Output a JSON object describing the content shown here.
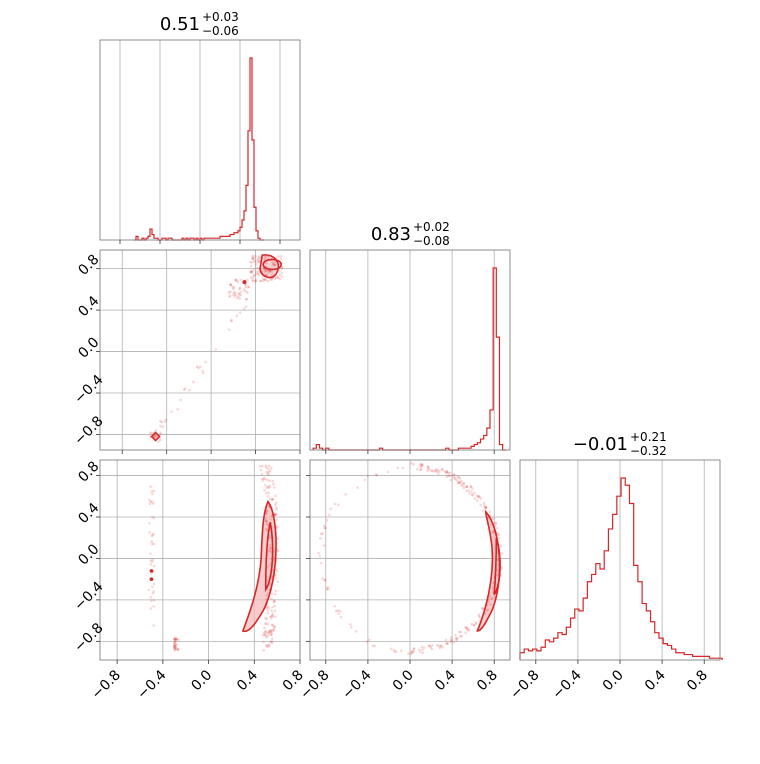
{
  "figure_type": "corner-plot",
  "colors": {
    "main": "#d62728",
    "fill": "#f4b6b8",
    "grid": "#b0b0b0",
    "frame": "#808080"
  },
  "chart_data": [
    {
      "type": "histogram",
      "panel": "hist-param-1",
      "title": {
        "median": "0.51",
        "upper": "+0.03",
        "lower": "−0.06"
      },
      "xlim": [
        -1,
        1
      ],
      "bins": [
        [
          -0.66,
          0.0
        ],
        [
          -0.64,
          0.02
        ],
        [
          -0.62,
          0.0
        ],
        [
          -0.6,
          0.0
        ],
        [
          -0.58,
          0.01
        ],
        [
          -0.56,
          0.0
        ],
        [
          -0.54,
          0.01
        ],
        [
          -0.52,
          0.02
        ],
        [
          -0.5,
          0.06
        ],
        [
          -0.48,
          0.03
        ],
        [
          -0.46,
          0.01
        ],
        [
          -0.44,
          0.01
        ],
        [
          -0.42,
          0.0
        ],
        [
          -0.4,
          0.0
        ],
        [
          -0.38,
          0.01
        ],
        [
          -0.36,
          0.01
        ],
        [
          -0.34,
          0.0
        ],
        [
          -0.32,
          0.01
        ],
        [
          -0.3,
          0.01
        ],
        [
          -0.28,
          0.0
        ],
        [
          -0.26,
          0.0
        ],
        [
          -0.24,
          0.0
        ],
        [
          -0.22,
          0.0
        ],
        [
          -0.2,
          0.0
        ],
        [
          -0.18,
          0.01
        ],
        [
          -0.16,
          0.0
        ],
        [
          -0.14,
          0.01
        ],
        [
          -0.12,
          0.0
        ],
        [
          -0.1,
          0.01
        ],
        [
          -0.08,
          0.01
        ],
        [
          -0.06,
          0.0
        ],
        [
          -0.04,
          0.01
        ],
        [
          -0.02,
          0.0
        ],
        [
          0.0,
          0.01
        ],
        [
          0.02,
          0.0
        ],
        [
          0.04,
          0.01
        ],
        [
          0.06,
          0.01
        ],
        [
          0.08,
          0.01
        ],
        [
          0.1,
          0.01
        ],
        [
          0.12,
          0.01
        ],
        [
          0.14,
          0.01
        ],
        [
          0.16,
          0.01
        ],
        [
          0.18,
          0.01
        ],
        [
          0.2,
          0.02
        ],
        [
          0.22,
          0.02
        ],
        [
          0.24,
          0.02
        ],
        [
          0.26,
          0.02
        ],
        [
          0.28,
          0.02
        ],
        [
          0.3,
          0.03
        ],
        [
          0.32,
          0.03
        ],
        [
          0.34,
          0.04
        ],
        [
          0.36,
          0.04
        ],
        [
          0.38,
          0.05
        ],
        [
          0.4,
          0.07
        ],
        [
          0.42,
          0.11
        ],
        [
          0.44,
          0.16
        ],
        [
          0.46,
          0.3
        ],
        [
          0.48,
          0.6
        ],
        [
          0.5,
          1.0
        ],
        [
          0.52,
          0.55
        ],
        [
          0.54,
          0.18
        ],
        [
          0.56,
          0.05
        ],
        [
          0.58,
          0.01
        ],
        [
          0.6,
          0.0
        ],
        [
          0.62,
          0.0
        ]
      ]
    },
    {
      "type": "histogram",
      "panel": "hist-param-2",
      "title": {
        "median": "0.83",
        "upper": "+0.02",
        "lower": "−0.08"
      },
      "xlim": [
        -0.95,
        0.95
      ],
      "bins": [
        [
          -0.92,
          0.01
        ],
        [
          -0.89,
          0.03
        ],
        [
          -0.86,
          0.01
        ],
        [
          -0.83,
          0.0
        ],
        [
          -0.8,
          0.01
        ],
        [
          -0.77,
          0.0
        ],
        [
          -0.74,
          0.0
        ],
        [
          -0.71,
          0.0
        ],
        [
          -0.68,
          0.0
        ],
        [
          -0.65,
          0.0
        ],
        [
          -0.62,
          0.0
        ],
        [
          -0.59,
          0.0
        ],
        [
          -0.56,
          0.0
        ],
        [
          -0.53,
          0.0
        ],
        [
          -0.5,
          0.0
        ],
        [
          -0.47,
          0.0
        ],
        [
          -0.44,
          0.0
        ],
        [
          -0.41,
          0.0
        ],
        [
          -0.38,
          0.0
        ],
        [
          -0.35,
          0.0
        ],
        [
          -0.32,
          0.0
        ],
        [
          -0.29,
          0.01
        ],
        [
          -0.26,
          0.0
        ],
        [
          -0.23,
          0.0
        ],
        [
          -0.2,
          0.0
        ],
        [
          -0.17,
          0.0
        ],
        [
          -0.14,
          0.0
        ],
        [
          -0.11,
          0.0
        ],
        [
          -0.08,
          0.0
        ],
        [
          -0.05,
          0.0
        ],
        [
          -0.02,
          0.0
        ],
        [
          0.01,
          0.0
        ],
        [
          0.04,
          0.0
        ],
        [
          0.07,
          0.0
        ],
        [
          0.1,
          0.0
        ],
        [
          0.13,
          0.0
        ],
        [
          0.16,
          0.0
        ],
        [
          0.19,
          0.0
        ],
        [
          0.22,
          0.0
        ],
        [
          0.25,
          0.0
        ],
        [
          0.28,
          0.0
        ],
        [
          0.31,
          0.0
        ],
        [
          0.34,
          0.01
        ],
        [
          0.37,
          0.0
        ],
        [
          0.4,
          0.0
        ],
        [
          0.43,
          0.0
        ],
        [
          0.46,
          0.01
        ],
        [
          0.49,
          0.01
        ],
        [
          0.52,
          0.01
        ],
        [
          0.55,
          0.01
        ],
        [
          0.58,
          0.02
        ],
        [
          0.61,
          0.03
        ],
        [
          0.64,
          0.04
        ],
        [
          0.67,
          0.06
        ],
        [
          0.7,
          0.08
        ],
        [
          0.73,
          0.12
        ],
        [
          0.76,
          0.22
        ],
        [
          0.79,
          1.0
        ],
        [
          0.82,
          0.62
        ],
        [
          0.85,
          0.03
        ],
        [
          0.88,
          0.0
        ]
      ]
    },
    {
      "type": "histogram",
      "panel": "hist-param-3",
      "title": {
        "median": "−0.01",
        "upper": "+0.21",
        "lower": "−0.32"
      },
      "xlim": [
        -0.95,
        0.95
      ],
      "bins": [
        [
          -0.95,
          0.04
        ],
        [
          -0.91,
          0.06
        ],
        [
          -0.87,
          0.05
        ],
        [
          -0.83,
          0.06
        ],
        [
          -0.79,
          0.05
        ],
        [
          -0.75,
          0.07
        ],
        [
          -0.71,
          0.11
        ],
        [
          -0.67,
          0.1
        ],
        [
          -0.63,
          0.12
        ],
        [
          -0.59,
          0.15
        ],
        [
          -0.55,
          0.14
        ],
        [
          -0.51,
          0.18
        ],
        [
          -0.47,
          0.23
        ],
        [
          -0.43,
          0.28
        ],
        [
          -0.39,
          0.27
        ],
        [
          -0.35,
          0.34
        ],
        [
          -0.31,
          0.43
        ],
        [
          -0.27,
          0.47
        ],
        [
          -0.23,
          0.53
        ],
        [
          -0.19,
          0.5
        ],
        [
          -0.15,
          0.6
        ],
        [
          -0.11,
          0.72
        ],
        [
          -0.07,
          0.8
        ],
        [
          -0.03,
          0.9
        ],
        [
          0.01,
          1.0
        ],
        [
          0.05,
          0.96
        ],
        [
          0.09,
          0.86
        ],
        [
          0.13,
          0.52
        ],
        [
          0.17,
          0.43
        ],
        [
          0.21,
          0.31
        ],
        [
          0.25,
          0.27
        ],
        [
          0.29,
          0.21
        ],
        [
          0.33,
          0.15
        ],
        [
          0.37,
          0.12
        ],
        [
          0.41,
          0.09
        ],
        [
          0.45,
          0.08
        ],
        [
          0.49,
          0.06
        ],
        [
          0.53,
          0.04
        ],
        [
          0.57,
          0.04
        ],
        [
          0.61,
          0.03
        ],
        [
          0.65,
          0.03
        ],
        [
          0.69,
          0.02
        ],
        [
          0.73,
          0.02
        ],
        [
          0.77,
          0.02
        ],
        [
          0.81,
          0.02
        ],
        [
          0.85,
          0.01
        ],
        [
          0.89,
          0.01
        ],
        [
          0.93,
          0.01
        ]
      ]
    }
  ],
  "axes": {
    "ticks": [
      -0.8,
      -0.4,
      0.0,
      0.4,
      0.8
    ],
    "tick_labels": [
      "−0.8",
      "−0.4",
      "0.0",
      "0.4",
      "0.8"
    ]
  }
}
